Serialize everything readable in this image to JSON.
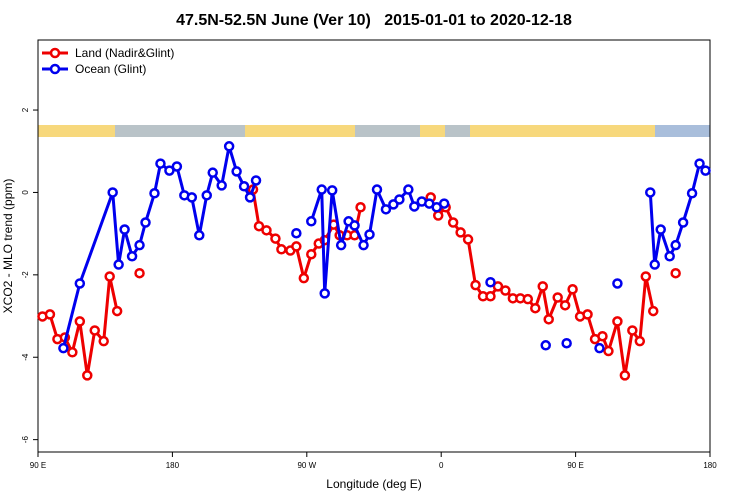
{
  "chart_data": {
    "type": "line",
    "title": "47.5N-52.5N June (Ver 10)   2015-01-01 to 2020-12-18",
    "xlabel": "Longitude (deg E)",
    "ylabel": "XCO2 - MLO trend (ppm)",
    "xlim": [
      90,
      540
    ],
    "ylim": [
      -6.3,
      3.7
    ],
    "xticks": [
      {
        "value": 90,
        "label": "90 E"
      },
      180,
      {
        "value": 270,
        "label": "90 W"
      },
      {
        "value": 360,
        "label": "0"
      },
      {
        "value": 450,
        "label": "90 E"
      },
      {
        "value": 540,
        "label": "180"
      }
    ],
    "yticks": [
      -6,
      -4,
      -2,
      0,
      2
    ],
    "legend": "top-left",
    "series": [
      {
        "name": "Land (Nadir&Glint)",
        "color": "#ee0000",
        "x": [
          93,
          98,
          103,
          108,
          113,
          118,
          123,
          128,
          134,
          138,
          143,
          null,
          158,
          null,
          234,
          238,
          243,
          249,
          253,
          259,
          263,
          268,
          273,
          278,
          282,
          288,
          292,
          297,
          302,
          306,
          null,
          353,
          358,
          363,
          368,
          373,
          378,
          383,
          388,
          393,
          398,
          403,
          408,
          413,
          418,
          423,
          428,
          432,
          438,
          443,
          448,
          453,
          458,
          463,
          468,
          472,
          478,
          483,
          488,
          493,
          497,
          502,
          null,
          517
        ],
        "values": [
          -3.01,
          -2.96,
          -3.56,
          -3.52,
          -3.88,
          -3.13,
          -4.44,
          -3.35,
          -3.61,
          -2.04,
          -2.88,
          null,
          -1.96,
          null,
          0.07,
          -0.82,
          -0.92,
          -1.12,
          -1.38,
          -1.41,
          -1.31,
          -2.08,
          -1.5,
          -1.24,
          -1.16,
          -0.78,
          -1.04,
          -1.04,
          -1.04,
          -0.36,
          null,
          -0.12,
          -0.56,
          -0.36,
          -0.73,
          -0.97,
          -1.14,
          -2.25,
          -2.52,
          -2.52,
          -2.28,
          -2.38,
          -2.57,
          -2.57,
          -2.59,
          -2.81,
          -2.28,
          -3.08,
          -2.55,
          -2.74,
          -2.35,
          -3.01,
          -2.96,
          -3.56,
          -3.49,
          -3.85,
          -3.13,
          -4.44,
          -3.35,
          -3.61,
          -2.04,
          -2.88,
          null,
          -1.96
        ]
      },
      {
        "name": "Ocean (Glint)",
        "color": "#0000ee",
        "x": [
          107,
          118,
          140,
          144,
          148,
          153,
          158,
          162,
          168,
          172,
          178,
          183,
          188,
          193,
          198,
          203,
          207,
          213,
          218,
          223,
          228,
          232,
          236,
          null,
          263,
          null,
          273,
          280,
          282,
          287,
          293,
          298,
          302,
          308,
          312,
          317,
          323,
          328,
          332,
          338,
          342,
          347,
          352,
          357,
          362,
          null,
          393,
          null,
          430,
          null,
          444,
          null,
          466,
          null,
          478,
          null,
          500,
          503,
          507,
          513,
          517,
          522,
          528,
          533,
          537
        ],
        "values": [
          -3.78,
          -2.21,
          0,
          -1.75,
          -0.9,
          -1.55,
          -1.28,
          -0.73,
          -0.02,
          0.7,
          0.53,
          0.63,
          -0.07,
          -0.12,
          -1.04,
          -0.07,
          0.48,
          0.17,
          1.12,
          0.51,
          0.15,
          -0.12,
          0.29,
          null,
          -0.99,
          null,
          -0.7,
          0.07,
          -2.45,
          0.05,
          -1.28,
          -0.7,
          -0.8,
          -1.28,
          -1.02,
          0.07,
          -0.41,
          -0.29,
          -0.17,
          0.07,
          -0.34,
          -0.22,
          -0.27,
          -0.36,
          -0.27,
          null,
          -2.18,
          null,
          -3.71,
          null,
          -3.66,
          null,
          -3.78,
          null,
          -2.21,
          null,
          0,
          -1.75,
          -0.9,
          -1.55,
          -1.28,
          -0.73,
          -0.02,
          0.7,
          0.53
        ]
      }
    ]
  }
}
